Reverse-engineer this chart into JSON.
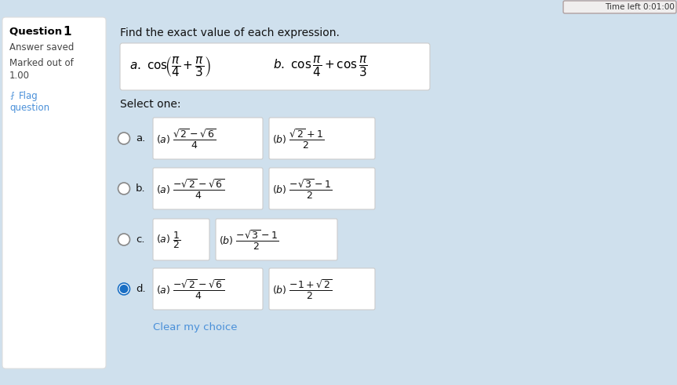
{
  "bg_color": "#cfe0ed",
  "left_panel_bg": "#ffffff",
  "option_box_bg": "#ffffff",
  "question_number_regular": "Question ",
  "question_number_bold": "1",
  "answer_saved": "Answer saved",
  "marked_out_of": "Marked out of",
  "marked_value": "1.00",
  "flag_text": "Flag\nquestion",
  "main_instruction": "Find the exact value of each expression.",
  "select_one": "Select one:",
  "clear_choice": "Clear my choice",
  "time_left_text": "Time left 0:01:00",
  "radio_color_selected": "#1a6fc4",
  "radio_border_selected": "#1a6fc4",
  "radio_border_unselected": "#888888",
  "flag_color": "#4a90d9",
  "clear_color": "#4a90d9",
  "selected_idx": 3,
  "option_labels": [
    "a.",
    "b.",
    "c.",
    "d."
  ],
  "option_a_latex": [
    "(a)\\;\\dfrac{\\sqrt{2}-\\sqrt{6}}{4}",
    "(a)\\;\\dfrac{-\\sqrt{2}-\\sqrt{6}}{4}",
    "(a)\\;\\dfrac{1}{2}",
    "(a)\\;\\dfrac{-\\sqrt{2}-\\sqrt{6}}{4}"
  ],
  "option_b_latex": [
    "(b)\\;\\dfrac{\\sqrt{2}+1}{2}",
    "(b)\\;\\dfrac{-\\sqrt{3}-1}{2}",
    "(b)\\;\\dfrac{-\\sqrt{3}-1}{2}",
    "(b)\\;\\dfrac{-1+\\sqrt{2}}{2}"
  ]
}
